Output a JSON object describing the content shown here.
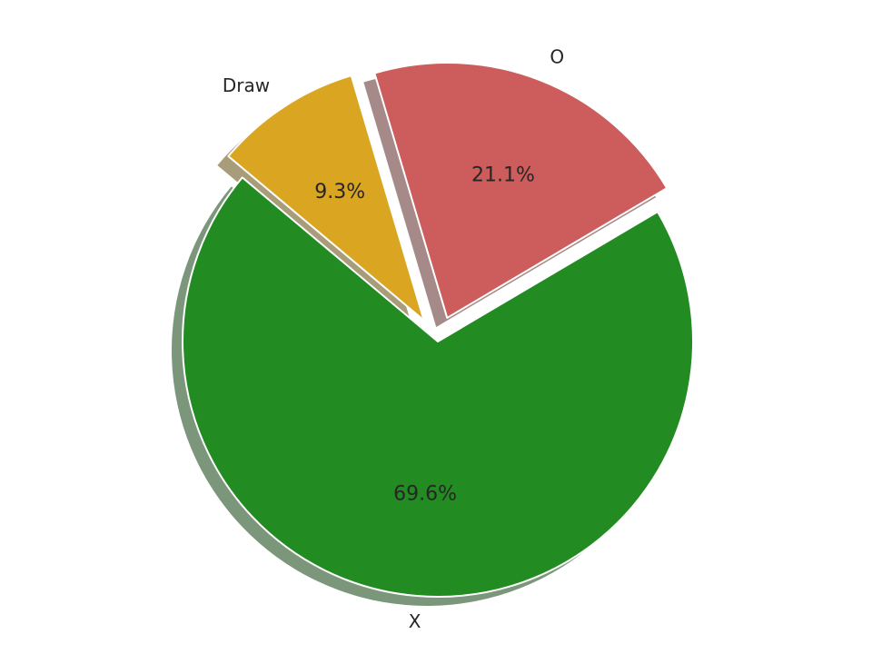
{
  "chart_data": {
    "type": "pie",
    "title": "",
    "slices": [
      {
        "label": "X",
        "value": 69.6,
        "pct_text": "69.6%",
        "color": "#228b22",
        "exploded": false
      },
      {
        "label": "O",
        "value": 21.1,
        "pct_text": "21.1%",
        "color": "#cd5c5c",
        "exploded": true
      },
      {
        "label": "Draw",
        "value": 9.3,
        "pct_text": "9.3%",
        "color": "#daa520",
        "exploded": true
      }
    ],
    "shadow": true,
    "legend": "none"
  }
}
